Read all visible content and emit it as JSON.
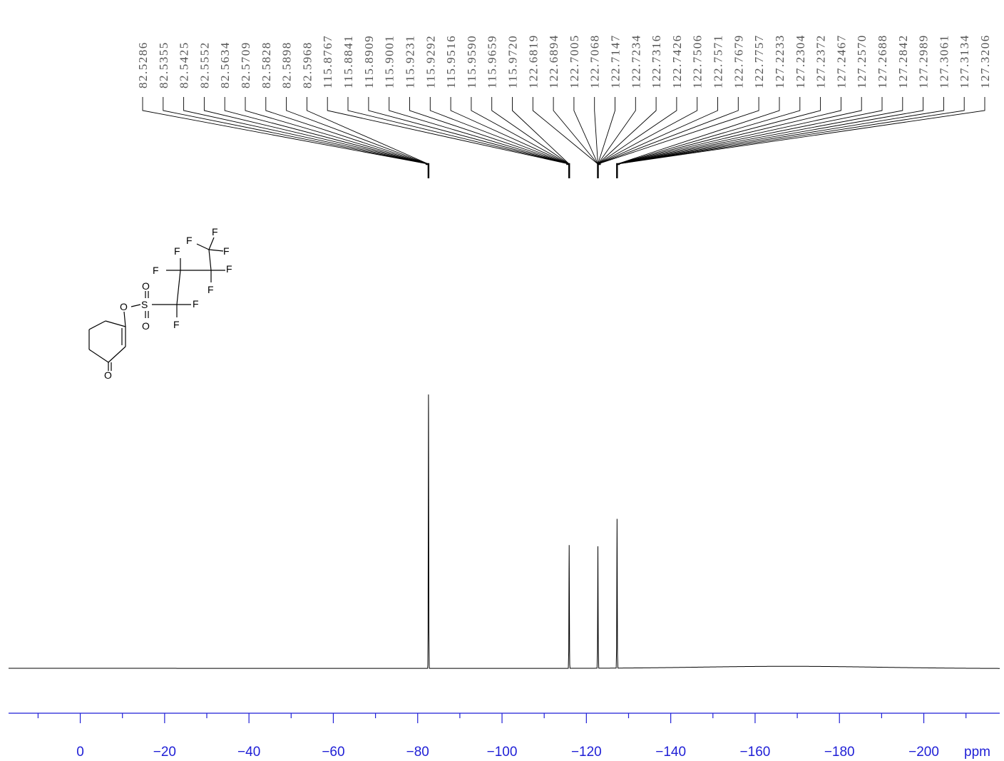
{
  "chart_data": {
    "type": "line",
    "title": "",
    "xlabel": "ppm",
    "ylabel": "",
    "xlim": [
      17,
      -218
    ],
    "x_reversed": true,
    "x_ticks": [
      0,
      -20,
      -40,
      -60,
      -80,
      -100,
      -120,
      -140,
      -160,
      -180,
      -200
    ],
    "x_tick_labels": [
      "0",
      "−20",
      "−40",
      "−60",
      "−80",
      "−100",
      "−120",
      "−140",
      "−160",
      "−180",
      "−200"
    ],
    "minor_tick_step": 10,
    "unit_label": "ppm",
    "grid": false,
    "peaks": [
      {
        "shift": -82.56,
        "relative_height": 1.0
      },
      {
        "shift": -115.92,
        "relative_height": 0.45
      },
      {
        "shift": -122.73,
        "relative_height": 0.445
      },
      {
        "shift": -127.27,
        "relative_height": 0.545
      }
    ],
    "baseline_hump": {
      "center": -168,
      "width": 30,
      "relative_height": 0.008
    },
    "peak_labels": [
      {
        "text": "82.5286",
        "shift": -82.5286
      },
      {
        "text": "82.5355",
        "shift": -82.5355
      },
      {
        "text": "82.5425",
        "shift": -82.5425
      },
      {
        "text": "82.5552",
        "shift": -82.5552
      },
      {
        "text": "82.5634",
        "shift": -82.5634
      },
      {
        "text": "82.5709",
        "shift": -82.5709
      },
      {
        "text": "82.5828",
        "shift": -82.5828
      },
      {
        "text": "82.5898",
        "shift": -82.5898
      },
      {
        "text": "82.5968",
        "shift": -82.5968
      },
      {
        "text": "115.8767",
        "shift": -115.8767
      },
      {
        "text": "115.8841",
        "shift": -115.8841
      },
      {
        "text": "115.8909",
        "shift": -115.8909
      },
      {
        "text": "115.9001",
        "shift": -115.9001
      },
      {
        "text": "115.9231",
        "shift": -115.9231
      },
      {
        "text": "115.9292",
        "shift": -115.9292
      },
      {
        "text": "115.9516",
        "shift": -115.9516
      },
      {
        "text": "115.9590",
        "shift": -115.959
      },
      {
        "text": "115.9659",
        "shift": -115.9659
      },
      {
        "text": "115.9720",
        "shift": -115.972
      },
      {
        "text": "122.6819",
        "shift": -122.6819
      },
      {
        "text": "122.6894",
        "shift": -122.6894
      },
      {
        "text": "122.7005",
        "shift": -122.7005
      },
      {
        "text": "122.7068",
        "shift": -122.7068
      },
      {
        "text": "122.7147",
        "shift": -122.7147
      },
      {
        "text": "122.7234",
        "shift": -122.7234
      },
      {
        "text": "122.7316",
        "shift": -122.7316
      },
      {
        "text": "122.7426",
        "shift": -122.7426
      },
      {
        "text": "122.7506",
        "shift": -122.7506
      },
      {
        "text": "122.7571",
        "shift": -122.7571
      },
      {
        "text": "122.7679",
        "shift": -122.7679
      },
      {
        "text": "122.7757",
        "shift": -122.7757
      },
      {
        "text": "127.2233",
        "shift": -127.2233
      },
      {
        "text": "127.2304",
        "shift": -127.2304
      },
      {
        "text": "127.2372",
        "shift": -127.2372
      },
      {
        "text": "127.2467",
        "shift": -127.2467
      },
      {
        "text": "127.2570",
        "shift": -127.257
      },
      {
        "text": "127.2688",
        "shift": -127.2688
      },
      {
        "text": "127.2842",
        "shift": -127.2842
      },
      {
        "text": "127.2989",
        "shift": -127.2989
      },
      {
        "text": "127.3061",
        "shift": -127.3061
      },
      {
        "text": "127.3134",
        "shift": -127.3134
      },
      {
        "text": "127.3206",
        "shift": -127.3206
      }
    ],
    "structure_atoms": [
      "F",
      "F",
      "F",
      "F",
      "F",
      "F",
      "F",
      "F",
      "F",
      "O",
      "O",
      "O",
      "S",
      "O"
    ]
  },
  "colors": {
    "spectrum": "#000000",
    "axis": "#1f1fd6",
    "label_text": "#555555",
    "leader_lines": "#000000"
  }
}
